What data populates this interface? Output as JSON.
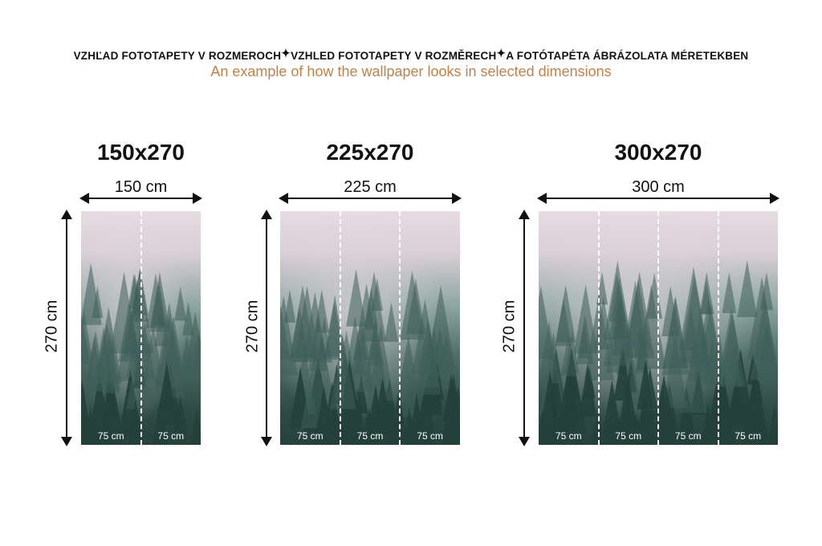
{
  "header": {
    "line_parts": [
      "VZHĽAD FOTOTAPETY V ROZMEROCH",
      "VZHLED FOTOTAPETY V ROZMĚRECH",
      "A FOTÓTAPÉTA ÁBRÁZOLATA MÉRETEKBEN"
    ],
    "separator_icon": "sparkle-icon",
    "subtitle": "An example of how the wallpaper looks in selected dimensions",
    "subtitle_color": "#c0814c"
  },
  "variants": [
    {
      "title": "150x270",
      "width_label": "150 cm",
      "height_label": "270 cm",
      "strips": [
        "75 cm",
        "75 cm"
      ]
    },
    {
      "title": "225x270",
      "width_label": "225 cm",
      "height_label": "270 cm",
      "strips": [
        "75 cm",
        "75 cm",
        "75 cm"
      ]
    },
    {
      "title": "300x270",
      "width_label": "300 cm",
      "height_label": "270 cm",
      "strips": [
        "75 cm",
        "75 cm",
        "75 cm",
        "75 cm"
      ]
    }
  ]
}
